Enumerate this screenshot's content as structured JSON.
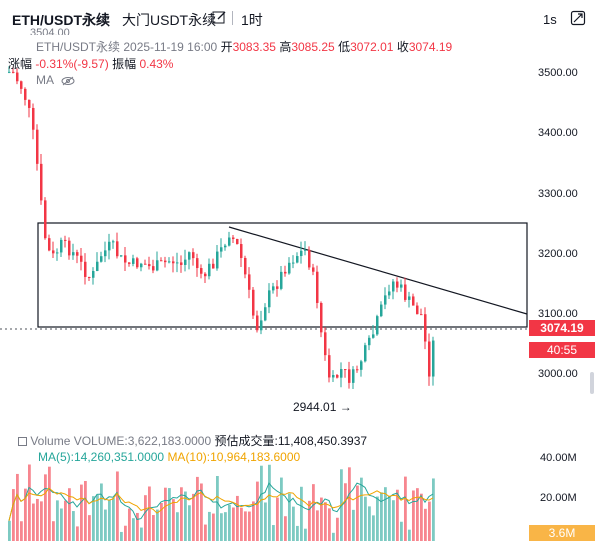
{
  "header": {
    "symbol": "ETH/USDT永续",
    "exchange": "大门USDT永续",
    "timeframe": "1时",
    "interval_button": "1s",
    "edit_icon": "edit-icon",
    "fullscreen_icon": "fullscreen-icon"
  },
  "legend": {
    "symbol": "ETH/USDT永续",
    "datetime": "2025-11-19 16:00",
    "open_label": "开",
    "open": "3083.35",
    "high_label": "高",
    "high": "3085.25",
    "low_label": "低",
    "low": "3072.01",
    "close_label": "收",
    "close": "3074.19",
    "change_label": "涨幅",
    "change": "-0.31%(-9.57)",
    "amplitude_label": "振幅",
    "amplitude": "0.43%",
    "ma_label": "MA",
    "partial_top_label": "3504.00"
  },
  "price_axis": [
    "3500.00",
    "3400.00",
    "3300.00",
    "3200.00",
    "3100.00",
    "3000.00"
  ],
  "price_tag": {
    "value": "3074.19",
    "countdown": "40:55"
  },
  "annotation_low": "2944.01 →",
  "volume": {
    "label": "Volume",
    "volume_text": "VOLUME:3,622,183.0000",
    "est_label": "预估成交量:",
    "est_value": "11,408,450.3937",
    "ma5_text": "MA(5):14,260,351.0000",
    "ma10_text": "MA(10):10,964,183.6000",
    "axis": [
      "40.00M",
      "20.00M"
    ],
    "tag": "3.6M"
  },
  "colors": {
    "up": "#26a69a",
    "down": "#f23645",
    "ma10": "#f0a400"
  }
}
